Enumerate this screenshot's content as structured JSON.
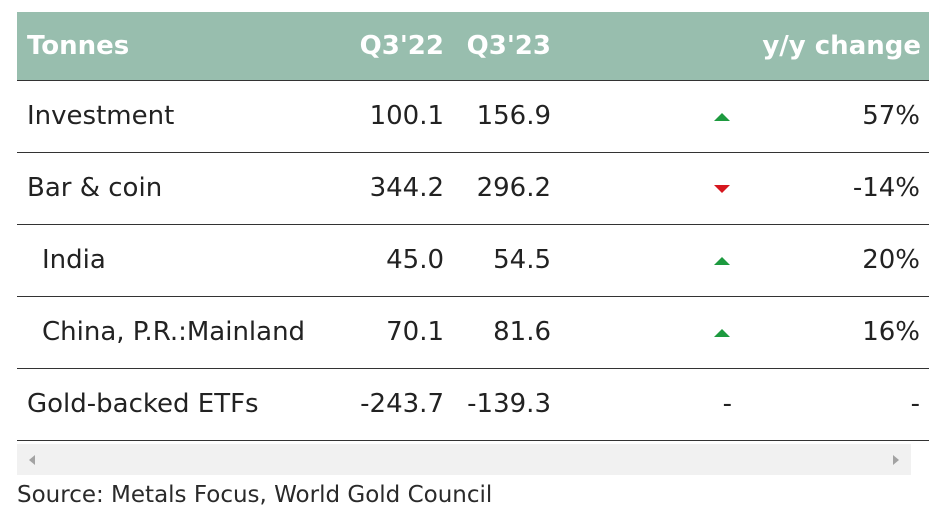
{
  "colors": {
    "header_bg": "#98beae",
    "up": "#1d9a3f",
    "down": "#d6161e"
  },
  "chart_data": {
    "type": "table",
    "columns": [
      "Tonnes",
      "Q3'22",
      "Q3'23",
      "y/y change"
    ],
    "rows": [
      {
        "label": "Investment",
        "indent": false,
        "q3_22": "100.1",
        "q3_23": "156.9",
        "direction": "up",
        "change": "57%"
      },
      {
        "label": "Bar & coin",
        "indent": false,
        "q3_22": "344.2",
        "q3_23": "296.2",
        "direction": "down",
        "change": "-14%"
      },
      {
        "label": "India",
        "indent": true,
        "q3_22": "45.0",
        "q3_23": "54.5",
        "direction": "up",
        "change": "20%"
      },
      {
        "label": "China, P.R.:Mainland",
        "indent": true,
        "q3_22": "70.1",
        "q3_23": "81.6",
        "direction": "up",
        "change": "16%"
      },
      {
        "label": "Gold-backed ETFs",
        "indent": false,
        "q3_22": "-243.7",
        "q3_23": "-139.3",
        "direction": "-",
        "change": "-"
      }
    ]
  },
  "scrollbar": {
    "left_icon": "chevron-left-icon",
    "right_icon": "chevron-right-icon"
  },
  "source": "Source: Metals Focus, World Gold Council"
}
